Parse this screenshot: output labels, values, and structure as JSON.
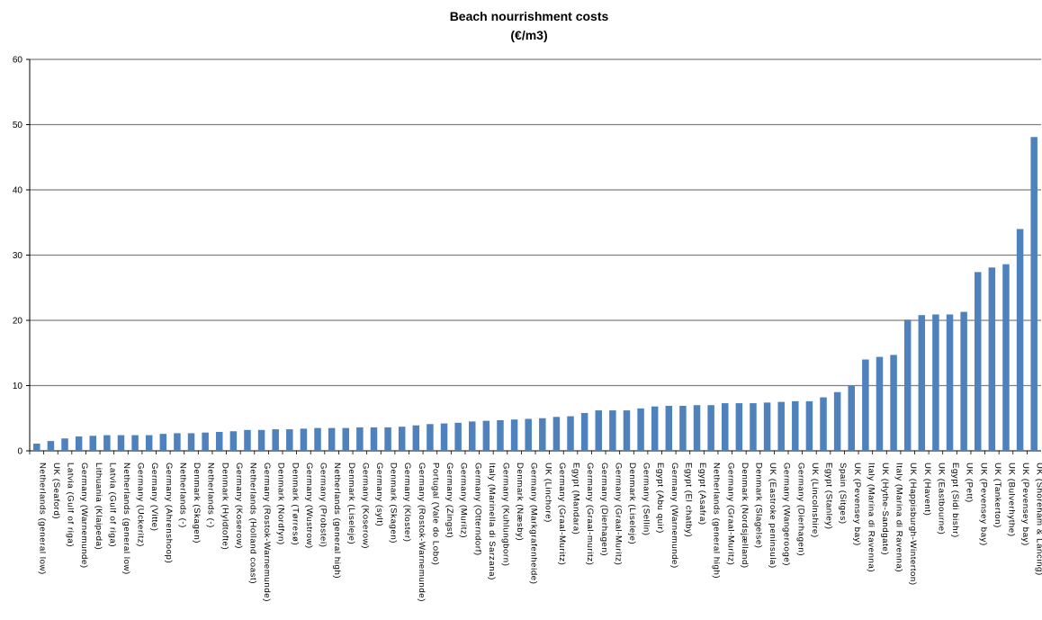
{
  "chart_data": {
    "type": "bar",
    "title_lines": [
      "Beach nourrishment costs",
      "(€/m3)"
    ],
    "ylim": [
      0,
      60
    ],
    "yticks": [
      0,
      10,
      20,
      30,
      40,
      50,
      60
    ],
    "grid": true,
    "bar_color": "#4f81bd",
    "grid_color": "#7f7f7f",
    "categories": [
      "Netherlands (general low)",
      "UK (Seaford)",
      "Latvia (Gulf of riga)",
      "Germany (Warnemunde)",
      "Lithuania (Klaipeda)",
      "Latvia (Gulf of riga)",
      "Netherlands (general low)",
      "Germany (Uckeritz)",
      "Germany (Vitte)",
      "Germany (Ahrenshoop)",
      "Netherlands (-)",
      "Denmark (Skagen)",
      "Netherlands (-)",
      "Denmark (Hyldtofte)",
      "Germany (Koserow)",
      "Netherlands (Holland coast)",
      "Germany (Rostok-Warnemunde)",
      "Denmark (Nordfyn)",
      "Denmark (Tørresø)",
      "Germany (Wustrow)",
      "Germany (Probstei)",
      "Netherlands (general high)",
      "Denmark (Liseleje)",
      "Germany (Koserow)",
      "Germany (sylt)",
      "Denmark (Skagen)",
      "Germany (Kloster)",
      "Germany (Rostok-Warnemunde)",
      "Portugal (Vale do Lobo)",
      "Germany (Zingst)",
      "Germany (Muritz)",
      "Germany (Otterndorf)",
      "Italy (Marinella di Sarzana)",
      "Germany (Kuhlungborn)",
      "Denmark (Næsby)",
      "Germany (Markgrafenheide)",
      "UK (Linchore)",
      "Germany (Graal-Muritz)",
      "Egypt (Mandara)",
      "Germany (Graal-muritz)",
      "Germany (Dierhagen)",
      "Germany (Graal-Muritz)",
      "Denmark (Liseleje)",
      "Germany (Sellin)",
      "Egypt (Abu quir)",
      "Germany (Warnemunde)",
      "Egypt (El chatby)",
      "Egypt (Asafra)",
      "Netherlands (general high)",
      "Germany (Graal-Muritz)",
      "Denmark (Nordsjælland)",
      "Denmark (Slagelse)",
      "UK (Eastroke peninsula)",
      "Germany (Wangerooge)",
      "Germany (Dierhagen)",
      "UK (Lincolnshire)",
      "Egypt (Stanley)",
      "Spain (Sitges)",
      "UK (Pevensey bay)",
      "Italy (Marina di Ravenna)",
      "UK (Hythe-Sandgate)",
      "Italy (Marina di Ravenna)",
      "UK (Happisburgh-Winterton)",
      "UK (Havent)",
      "UK (Eastbourne)",
      "Egypt (Sidi bishr)",
      "UK (Pett)",
      "UK (Pevensey bay)",
      "UK (Tankerton)",
      "UK (Bulverhythe)",
      "UK (Pevensey bay)",
      "UK (Shoreham & Lancing)"
    ],
    "values": [
      1.1,
      1.5,
      1.9,
      2.2,
      2.3,
      2.4,
      2.4,
      2.4,
      2.4,
      2.6,
      2.7,
      2.7,
      2.8,
      2.9,
      3.0,
      3.2,
      3.2,
      3.3,
      3.3,
      3.4,
      3.5,
      3.5,
      3.5,
      3.6,
      3.6,
      3.6,
      3.7,
      3.9,
      4.1,
      4.2,
      4.3,
      4.5,
      4.6,
      4.7,
      4.8,
      4.9,
      5.0,
      5.2,
      5.3,
      5.8,
      6.2,
      6.2,
      6.2,
      6.5,
      6.8,
      6.9,
      6.9,
      7.0,
      7.0,
      7.3,
      7.3,
      7.3,
      7.4,
      7.5,
      7.6,
      7.6,
      8.2,
      9.0,
      10.0,
      14.0,
      14.4,
      14.7,
      20.1,
      20.8,
      20.9,
      20.9,
      21.3,
      27.4,
      28.1,
      28.6,
      34.0,
      48.1
    ]
  }
}
